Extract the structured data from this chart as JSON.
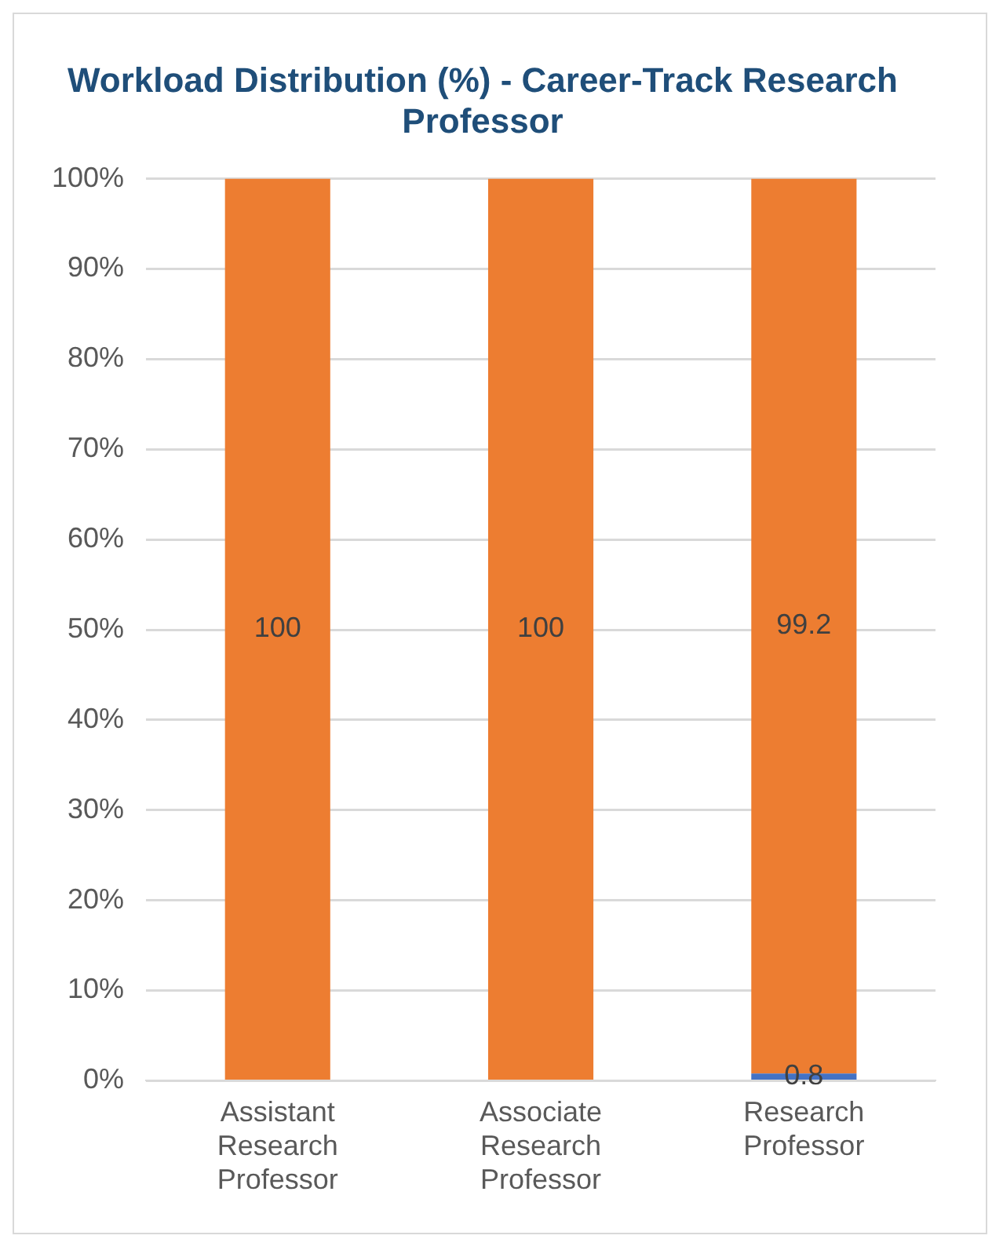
{
  "chart_data": {
    "type": "bar",
    "stacked": true,
    "title": "Workload Distribution (%) - Career-Track Research Professor",
    "categories": [
      "Assistant Research Professor",
      "Associate Research Professor",
      "Research Professor"
    ],
    "series": [
      {
        "color": "#4472c4",
        "values": [
          null,
          null,
          0.8
        ]
      },
      {
        "color": "#ed7d31",
        "values": [
          100,
          100,
          99.2
        ]
      }
    ],
    "ylim": [
      0,
      100
    ],
    "yticks": [
      {
        "value": 0,
        "label": "0%"
      },
      {
        "value": 10,
        "label": "10%"
      },
      {
        "value": 20,
        "label": "20%"
      },
      {
        "value": 30,
        "label": "30%"
      },
      {
        "value": 40,
        "label": "40%"
      },
      {
        "value": 50,
        "label": "50%"
      },
      {
        "value": 60,
        "label": "60%"
      },
      {
        "value": 70,
        "label": "70%"
      },
      {
        "value": 80,
        "label": "80%"
      },
      {
        "value": 90,
        "label": "90%"
      },
      {
        "value": 100,
        "label": "100%"
      }
    ],
    "grid": "y",
    "data_labels": true,
    "legend": false
  }
}
